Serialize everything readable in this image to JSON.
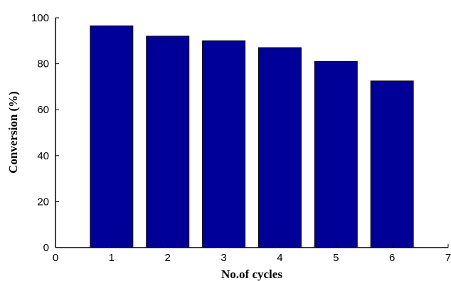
{
  "chart_data": {
    "type": "bar",
    "categories": [
      "1",
      "2",
      "3",
      "4",
      "5",
      "6"
    ],
    "x": [
      1,
      2,
      3,
      4,
      5,
      6
    ],
    "values": [
      96.5,
      92,
      90,
      87,
      81,
      72.5
    ],
    "xlabel": "No.of cycles",
    "ylabel": "Conversion (%)",
    "xlim": [
      0,
      7
    ],
    "ylim": [
      0,
      100
    ],
    "xticks": [
      "0",
      "1",
      "2",
      "3",
      "4",
      "5",
      "6",
      "7"
    ],
    "yticks": [
      "0",
      "20",
      "40",
      "60",
      "80",
      "100"
    ],
    "grid": false,
    "bar_color": "#000099",
    "bar_edge_color": "#000000"
  }
}
